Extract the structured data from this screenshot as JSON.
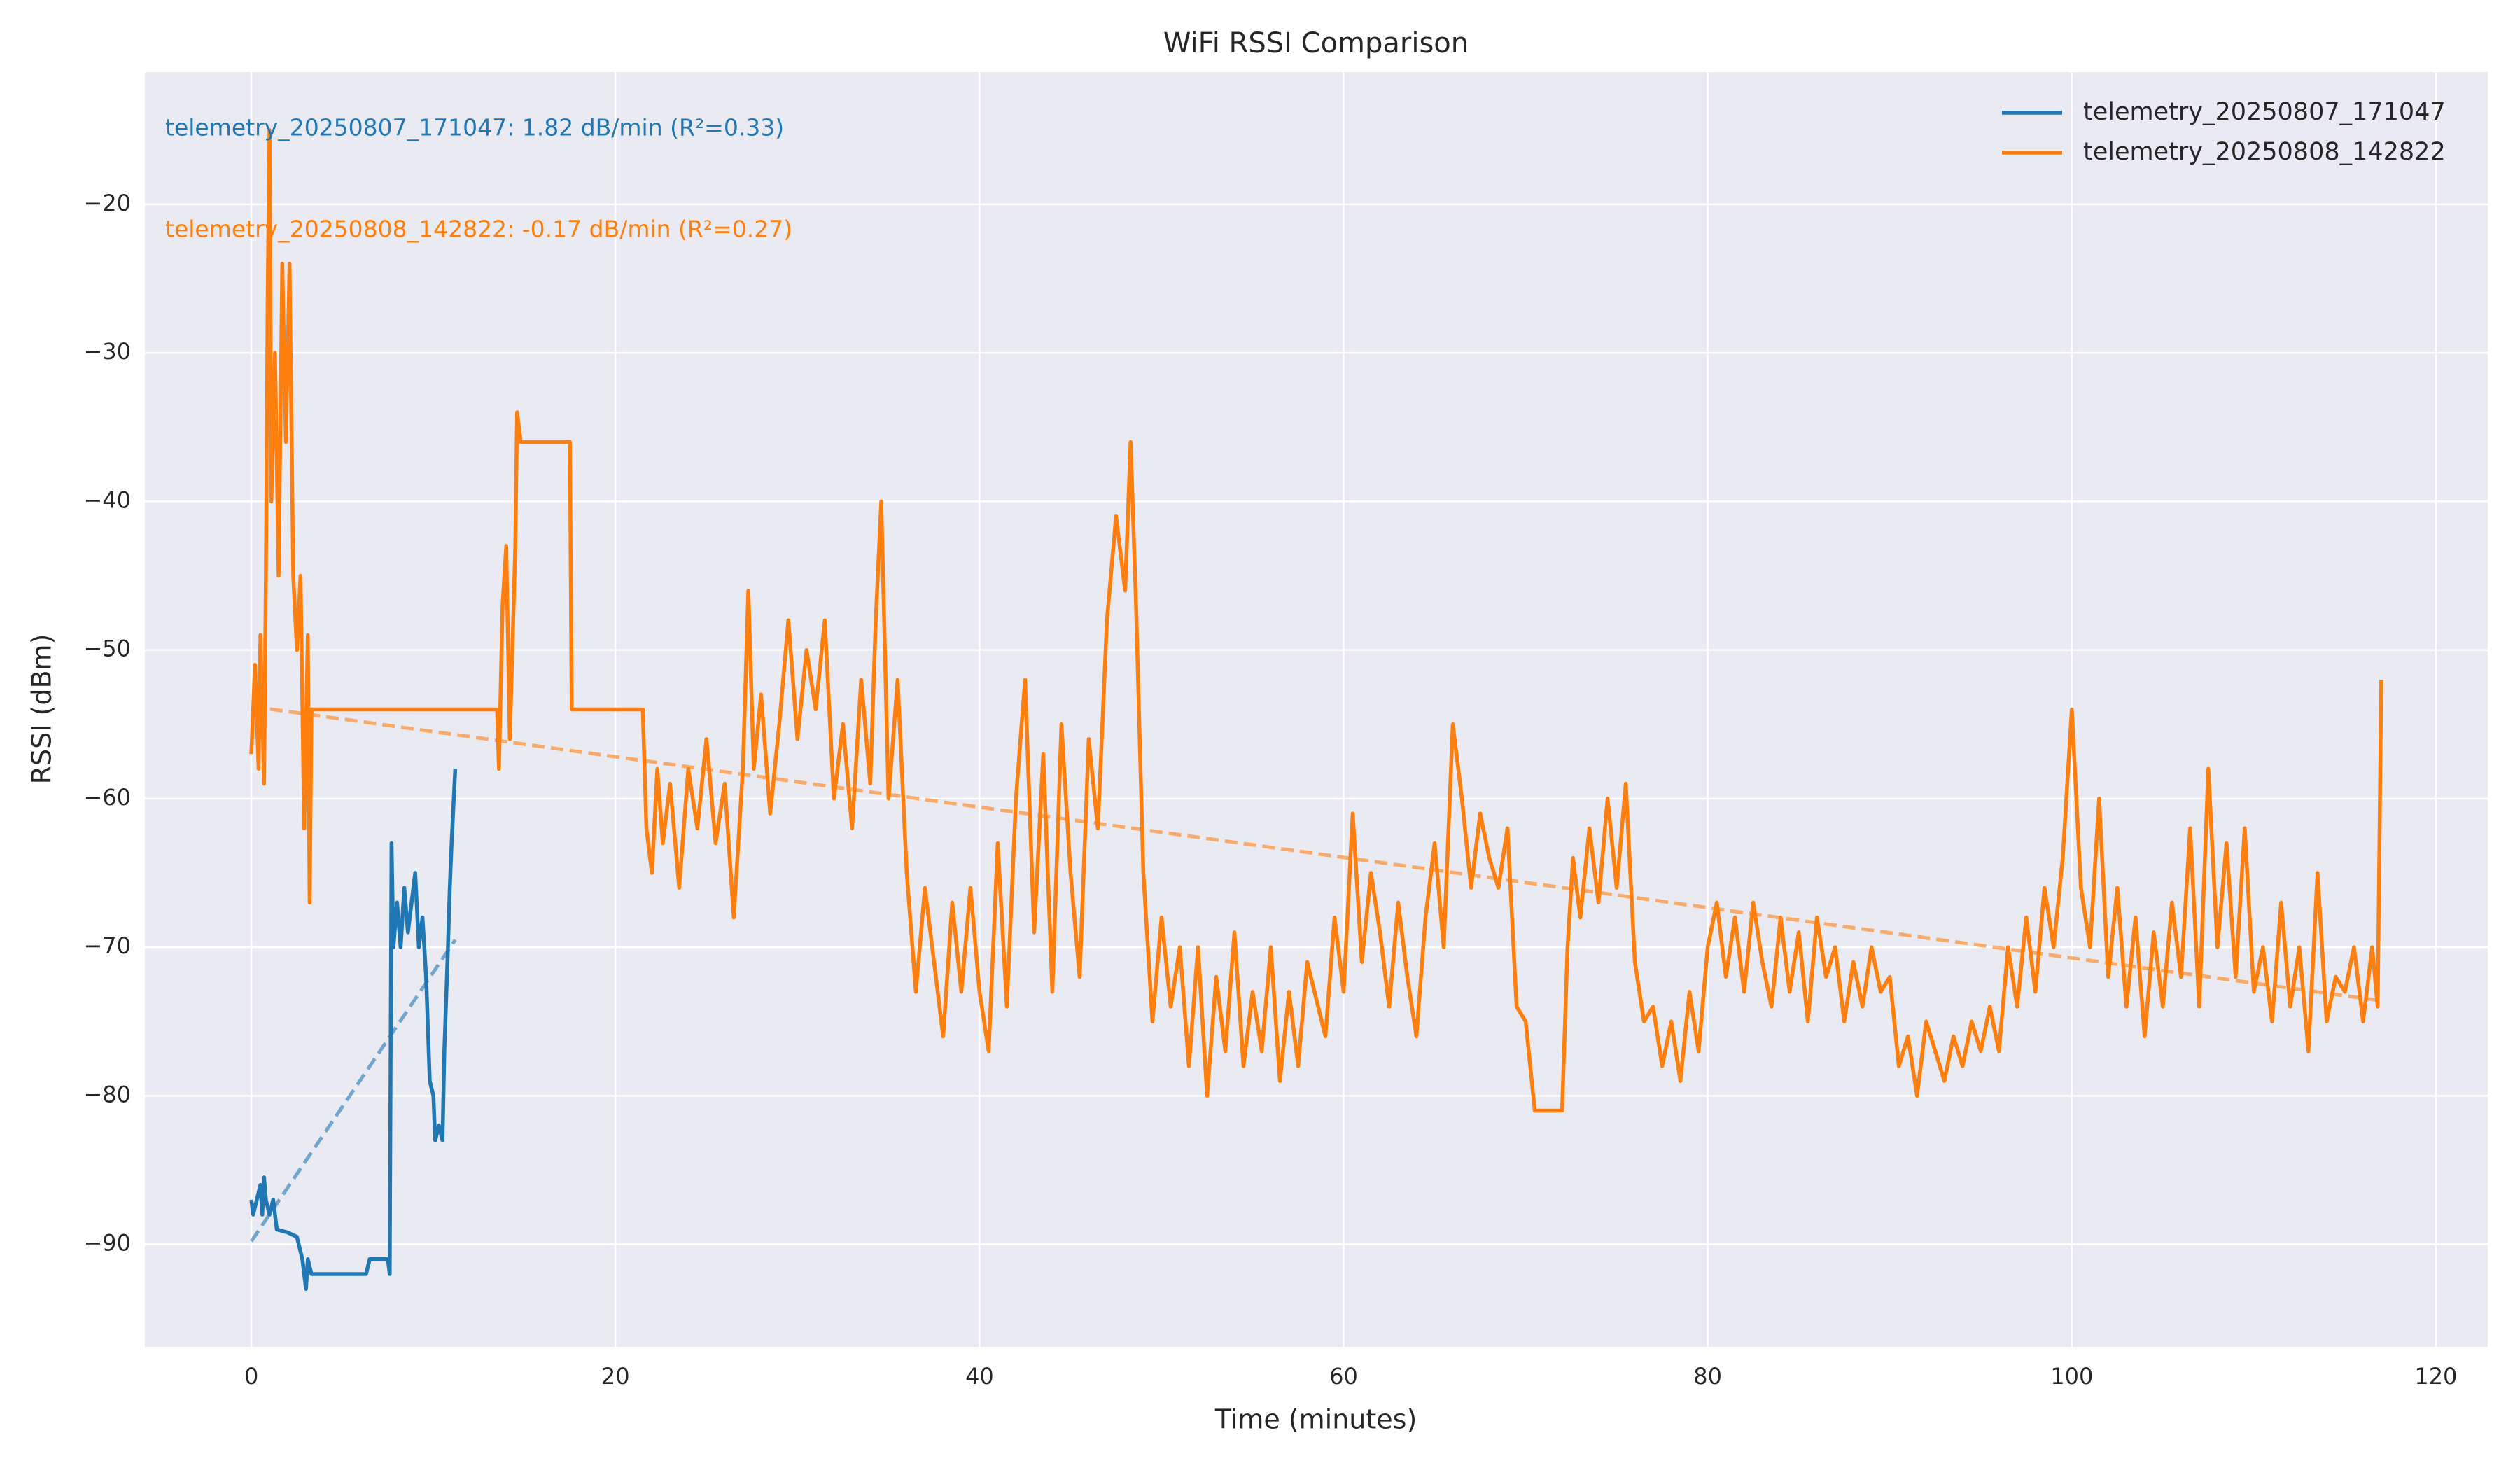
{
  "chart_data": {
    "type": "line",
    "title": "WiFi RSSI Comparison",
    "xlabel": "Time (minutes)",
    "ylabel": "RSSI (dBm)",
    "xlim": [
      -5.85,
      122.85
    ],
    "ylim": [
      -96.9,
      -11.1
    ],
    "xticks": [
      0,
      20,
      40,
      60,
      80,
      100,
      120
    ],
    "yticks": [
      {
        "value": -90,
        "label": "−90"
      },
      {
        "value": -80,
        "label": "−80"
      },
      {
        "value": -70,
        "label": "−70"
      },
      {
        "value": -60,
        "label": "−60"
      },
      {
        "value": -50,
        "label": "−50"
      },
      {
        "value": -40,
        "label": "−40"
      },
      {
        "value": -30,
        "label": "−30"
      },
      {
        "value": -20,
        "label": "−20"
      }
    ],
    "grid": true,
    "legend": "upper right",
    "series": [
      {
        "name": "telemetry_20250807_171047",
        "color": "#1f77b4",
        "x": [
          0,
          0.1,
          0.3,
          0.5,
          0.6,
          0.7,
          0.8,
          1.0,
          1.2,
          1.4,
          2.0,
          2.5,
          2.8,
          3.0,
          3.1,
          3.3,
          5.0,
          6.3,
          6.5,
          7.5,
          7.6,
          7.7,
          7.8,
          8.0,
          8.2,
          8.4,
          8.6,
          8.8,
          9.0,
          9.2,
          9.4,
          9.6,
          9.8,
          10.0,
          10.1,
          10.3,
          10.5,
          10.6,
          10.8,
          10.9,
          11.0,
          11.2
        ],
        "values": [
          -87,
          -88,
          -87,
          -86,
          -88,
          -85.5,
          -87,
          -88,
          -87,
          -89,
          -89.2,
          -89.5,
          -91,
          -93,
          -91,
          -92,
          -92,
          -92,
          -91,
          -91,
          -92,
          -63,
          -70,
          -67,
          -70,
          -66,
          -69,
          -67,
          -65,
          -70,
          -68,
          -72,
          -79,
          -80,
          -83,
          -82,
          -83,
          -77,
          -70,
          -66,
          -63,
          -58
        ]
      },
      {
        "name": "telemetry_20250808_142822",
        "color": "#ff7f0e",
        "x": [
          0,
          0.2,
          0.4,
          0.5,
          0.7,
          0.8,
          0.9,
          1.0,
          1.1,
          1.3,
          1.5,
          1.7,
          1.9,
          2.1,
          2.3,
          2.5,
          2.7,
          2.9,
          3.1,
          3.2,
          3.3,
          5,
          13.5,
          13.6,
          13.8,
          14.0,
          14.2,
          14.5,
          14.6,
          14.8,
          17.5,
          17.6,
          21.5,
          21.7,
          22,
          22.3,
          22.6,
          23,
          23.5,
          24,
          24.5,
          25,
          25.5,
          26,
          26.5,
          27,
          27.3,
          27.6,
          28,
          28.5,
          29,
          29.5,
          30,
          30.5,
          31,
          31.5,
          32,
          32.5,
          33,
          33.5,
          34,
          34.3,
          34.6,
          35,
          35.5,
          36,
          36.5,
          37,
          37.5,
          38,
          38.5,
          39,
          39.5,
          40,
          40.5,
          41,
          41.5,
          42,
          42.5,
          43,
          43.5,
          44,
          44.5,
          45,
          45.5,
          46,
          46.5,
          47,
          47.5,
          48,
          48.3,
          48.6,
          49,
          49.5,
          50,
          50.5,
          51,
          51.5,
          52,
          52.5,
          53,
          53.5,
          54,
          54.5,
          55,
          55.5,
          56,
          56.5,
          57,
          57.5,
          58,
          59,
          59.5,
          60,
          60.5,
          61,
          61.5,
          62,
          62.5,
          63,
          63.5,
          64,
          64.5,
          65,
          65.5,
          66,
          66.5,
          67,
          67.5,
          68,
          68.5,
          69,
          69.5,
          70,
          70.5,
          72,
          72.3,
          72.6,
          73,
          73.5,
          74,
          74.5,
          75,
          75.5,
          76,
          76.5,
          77,
          77.5,
          78,
          78.5,
          79,
          79.5,
          80,
          80.5,
          81,
          81.5,
          82,
          82.5,
          83,
          83.5,
          84,
          84.5,
          85,
          85.5,
          86,
          86.5,
          87,
          87.5,
          88,
          88.5,
          89,
          89.5,
          90,
          90.5,
          91,
          91.5,
          92,
          92.5,
          93,
          93.5,
          94,
          94.5,
          95,
          95.5,
          96,
          96.5,
          97,
          97.5,
          98,
          98.5,
          99,
          99.5,
          100,
          100.5,
          101,
          101.5,
          102,
          102.5,
          103,
          103.5,
          104,
          104.5,
          105,
          105.5,
          106,
          106.5,
          107,
          107.5,
          108,
          108.5,
          109,
          109.5,
          110,
          110.5,
          111,
          111.5,
          112,
          112.5,
          113,
          113.5,
          114,
          114.5,
          115,
          115.5,
          116,
          116.5,
          116.8,
          117
        ],
        "values": [
          -57,
          -51,
          -58,
          -49,
          -59,
          -45,
          -26,
          -15,
          -40,
          -30,
          -45,
          -24,
          -36,
          -24,
          -45,
          -50,
          -45,
          -62,
          -49,
          -67,
          -54,
          -54,
          -54,
          -58,
          -47,
          -43,
          -56,
          -43,
          -34,
          -36,
          -36,
          -54,
          -54,
          -62,
          -65,
          -58,
          -63,
          -59,
          -66,
          -58,
          -62,
          -56,
          -63,
          -59,
          -68,
          -58,
          -46,
          -58,
          -53,
          -61,
          -55,
          -48,
          -56,
          -50,
          -54,
          -48,
          -60,
          -55,
          -62,
          -52,
          -59,
          -48,
          -40,
          -60,
          -52,
          -65,
          -73,
          -66,
          -71,
          -76,
          -67,
          -73,
          -66,
          -73,
          -77,
          -63,
          -74,
          -60,
          -52,
          -69,
          -57,
          -73,
          -55,
          -65,
          -72,
          -56,
          -62,
          -48,
          -41,
          -46,
          -36,
          -47,
          -65,
          -75,
          -68,
          -74,
          -70,
          -78,
          -70,
          -80,
          -72,
          -77,
          -69,
          -78,
          -73,
          -77,
          -70,
          -79,
          -73,
          -78,
          -71,
          -76,
          -68,
          -73,
          -61,
          -71,
          -65,
          -69,
          -74,
          -67,
          -72,
          -76,
          -68,
          -63,
          -70,
          -55,
          -60,
          -66,
          -61,
          -64,
          -66,
          -62,
          -74,
          -75,
          -81,
          -81,
          -70,
          -64,
          -68,
          -62,
          -67,
          -60,
          -66,
          -59,
          -71,
          -75,
          -74,
          -78,
          -75,
          -79,
          -73,
          -77,
          -70,
          -67,
          -72,
          -68,
          -73,
          -67,
          -71,
          -74,
          -68,
          -73,
          -69,
          -75,
          -68,
          -72,
          -70,
          -75,
          -71,
          -74,
          -70,
          -73,
          -72,
          -78,
          -76,
          -80,
          -75,
          -77,
          -79,
          -76,
          -78,
          -75,
          -77,
          -74,
          -77,
          -70,
          -74,
          -68,
          -73,
          -66,
          -70,
          -64,
          -54,
          -66,
          -70,
          -60,
          -72,
          -66,
          -74,
          -68,
          -76,
          -69,
          -74,
          -67,
          -72,
          -62,
          -74,
          -58,
          -70,
          -63,
          -72,
          -62,
          -73,
          -70,
          -75,
          -67,
          -74,
          -70,
          -77,
          -65,
          -75,
          -72,
          -73,
          -70,
          -75,
          -70,
          -74,
          -52
        ]
      }
    ],
    "trendlines": [
      {
        "color": "#1f77b4",
        "x": [
          0,
          11.2
        ],
        "values": [
          -89.8,
          -69.5
        ]
      },
      {
        "color": "#ff7f0e",
        "x": [
          0,
          117
        ],
        "values": [
          -53.8,
          -73.6
        ]
      }
    ],
    "annotations": [
      {
        "text": "telemetry_20250807_171047: 1.82 dB/min (R²=0.33)",
        "color": "#1f77b4"
      },
      {
        "text": "telemetry_20250808_142822: -0.17 dB/min (R²=0.27)",
        "color": "#ff7f0e"
      }
    ]
  }
}
